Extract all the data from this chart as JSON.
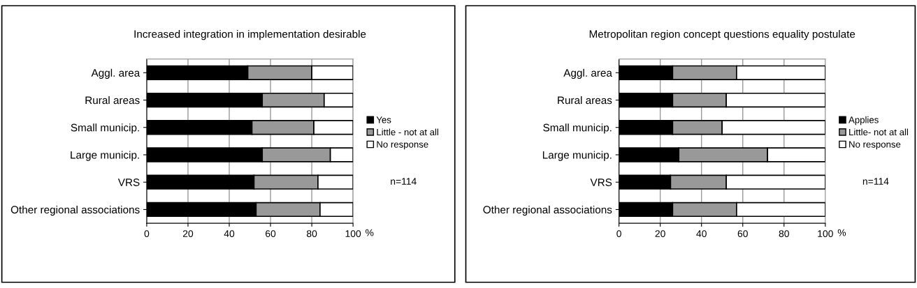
{
  "chart_data": [
    {
      "type": "bar",
      "orientation": "horizontal",
      "stacked": true,
      "title": "Increased integration in implementation desirable",
      "xlabel": "%",
      "categories": [
        "Aggl. area",
        "Rural areas",
        "Small municip.",
        "Large municip.",
        "VRS",
        "Other regional associations"
      ],
      "series": [
        {
          "name": "Yes",
          "color": "#000000",
          "values": [
            49,
            56,
            51,
            56,
            52,
            53
          ]
        },
        {
          "name": "Little - not at all",
          "color": "#999999",
          "values": [
            31,
            30,
            30,
            33,
            31,
            31
          ]
        },
        {
          "name": "No response",
          "color": "#ffffff",
          "values": [
            20,
            14,
            19,
            11,
            17,
            16
          ]
        }
      ],
      "xlim": [
        0,
        100
      ],
      "xticks": [
        0,
        20,
        40,
        60,
        80,
        100
      ],
      "grid": "x",
      "legend": "right",
      "annotations": [
        "n=114"
      ]
    },
    {
      "type": "bar",
      "orientation": "horizontal",
      "stacked": true,
      "title": "Metropolitan region concept questions equality postulate",
      "xlabel": "%",
      "categories": [
        "Aggl. area",
        "Rural areas",
        "Small municip.",
        "Large municip.",
        "VRS",
        "Other regional associations"
      ],
      "series": [
        {
          "name": "Applies",
          "color": "#000000",
          "values": [
            26,
            26,
            26,
            29,
            25,
            26
          ]
        },
        {
          "name": "Little- not at all",
          "color": "#999999",
          "values": [
            31,
            26,
            24,
            43,
            27,
            31
          ]
        },
        {
          "name": "No response",
          "color": "#ffffff",
          "values": [
            43,
            48,
            50,
            28,
            48,
            43
          ]
        }
      ],
      "xlim": [
        0,
        100
      ],
      "xticks": [
        0,
        20,
        40,
        60,
        80,
        100
      ],
      "grid": "x",
      "legend": "right",
      "annotations": [
        "n=114"
      ]
    }
  ]
}
